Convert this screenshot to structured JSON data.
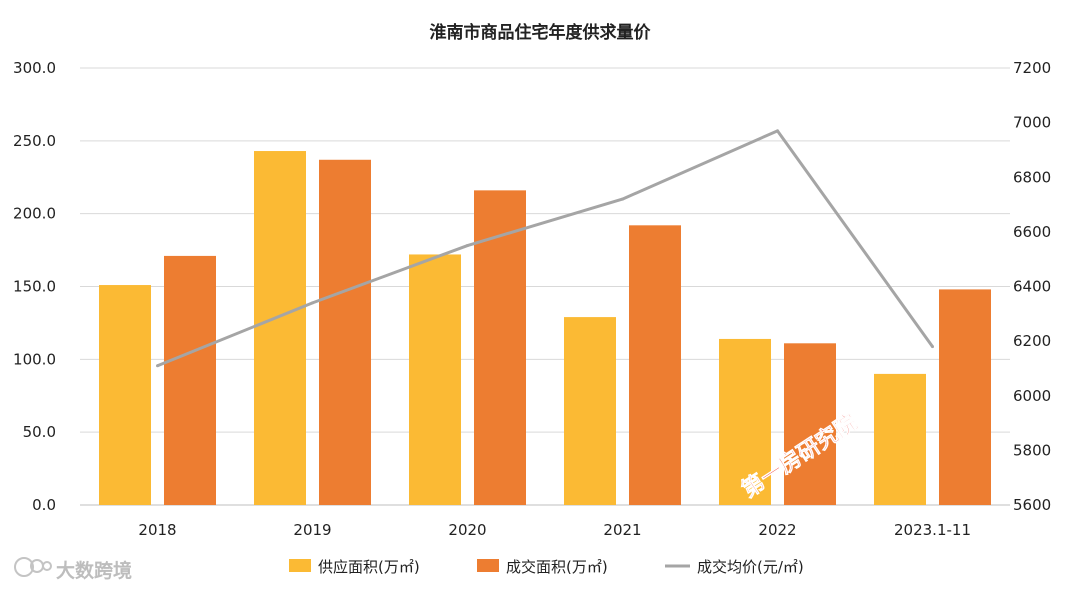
{
  "chart_data": {
    "type": "bar",
    "title": "淮南市商品住宅年度供求量价",
    "categories": [
      "2018",
      "2019",
      "2020",
      "2021",
      "2022",
      "2023.1-11"
    ],
    "series": [
      {
        "name": "供应面积(万㎡)",
        "type": "bar",
        "axis": "left",
        "color": "#FBBA34",
        "values": [
          151,
          243,
          172,
          129,
          114,
          90
        ]
      },
      {
        "name": "成交面积(万㎡)",
        "type": "bar",
        "axis": "left",
        "color": "#ED7D31",
        "values": [
          171,
          237,
          216,
          192,
          111,
          148
        ]
      },
      {
        "name": "成交均价(元/㎡)",
        "type": "line",
        "axis": "right",
        "color": "#A5A5A5",
        "values": [
          6110,
          6340,
          6550,
          6720,
          6970,
          6180
        ]
      }
    ],
    "ylim_left": [
      0,
      300
    ],
    "ylim_right": [
      5600,
      7200
    ],
    "left_ticks": [
      "0.0",
      "50.0",
      "100.0",
      "150.0",
      "200.0",
      "250.0",
      "300.0"
    ],
    "right_ticks": [
      "5600",
      "5800",
      "6000",
      "6200",
      "6400",
      "6600",
      "6800",
      "7000",
      "7200"
    ],
    "grid": true,
    "legend_position": "bottom"
  },
  "watermark": {
    "text": "第一房研究院",
    "color": "#e8312a"
  },
  "brand": {
    "text": "大数跨境",
    "icon": "brand-logo-icon"
  }
}
